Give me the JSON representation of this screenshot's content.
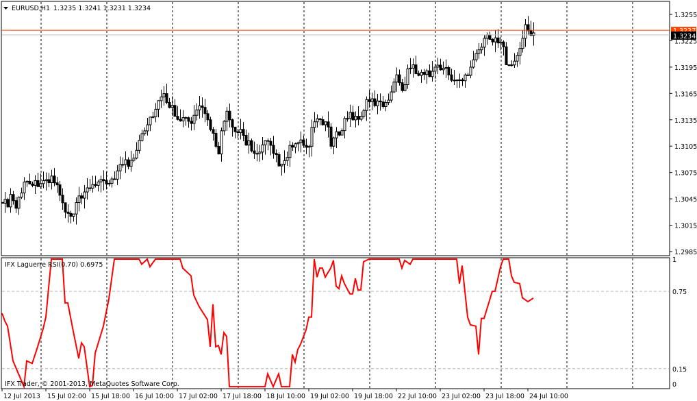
{
  "header": {
    "symbol_timeframe": "EURUSD,H1",
    "ohlc": "1.3235 1.3241 1.3231 1.3234",
    "menu_icon": "triangle-down-icon"
  },
  "indicator": {
    "label": "IFX Laguerre RSI(0.70) 0.6975",
    "copyright": "IFX Trader, © 2001-2013, MetaQuotes Software Corp.",
    "line_color": "#ff0000"
  },
  "colors": {
    "ask_line": "#ff4500",
    "bid_line": "#c0c0c0",
    "bid_label_bg": "#000000"
  },
  "chart_data": [
    {
      "type": "candlestick",
      "title": "EURUSD,H1",
      "ylim": [
        1.2975,
        1.3262
      ],
      "y_ticks": [
        "1.3255",
        "1.3225",
        "1.3195",
        "1.3165",
        "1.3135",
        "1.3105",
        "1.3075",
        "1.3045",
        "1.3015",
        "1.2985"
      ],
      "x_ticks": [
        "12 Jul 2013",
        "15 Jul 02:00",
        "15 Jul 18:00",
        "16 Jul 10:00",
        "17 Jul 02:00",
        "17 Jul 18:00",
        "18 Jul 10:00",
        "19 Jul 02:00",
        "19 Jul 18:00",
        "22 Jul 10:00",
        "23 Jul 02:00",
        "23 Jul 18:00",
        "24 Jul 10:00"
      ],
      "bar_count": 195,
      "bid": "1.3234",
      "ask": "1.3237",
      "approx_closes": [
        1.3045,
        1.3037,
        1.3052,
        1.3034,
        1.3052,
        1.3064,
        1.3067,
        1.3062,
        1.3064,
        1.3067,
        1.3061,
        1.307,
        1.3061,
        1.3045,
        1.3029,
        1.3022,
        1.3029,
        1.3045,
        1.3045,
        1.3057,
        1.3062,
        1.3064,
        1.3062,
        1.3061,
        1.3067,
        1.3072,
        1.308,
        1.3088,
        1.3084,
        1.3092,
        1.3107,
        1.3123,
        1.3127,
        1.3139,
        1.3146,
        1.3158,
        1.3162,
        1.3154,
        1.3146,
        1.3139,
        1.3137,
        1.3134,
        1.3129,
        1.3146,
        1.3148,
        1.3139,
        1.3131,
        1.3115,
        1.3099,
        1.3131,
        1.3142,
        1.3123,
        1.3119,
        1.3123,
        1.3111,
        1.3107,
        1.3096,
        1.3093,
        1.3107,
        1.3107,
        1.3098,
        1.3092,
        1.308,
        1.3088,
        1.3104,
        1.3107,
        1.3107,
        1.3109,
        1.3096,
        1.3131,
        1.3136,
        1.3134,
        1.3131,
        1.3107,
        1.3115,
        1.3123,
        1.3134,
        1.3141,
        1.3139,
        1.3134,
        1.3146,
        1.3154,
        1.3156,
        1.3154,
        1.3152,
        1.3154,
        1.3162,
        1.3182,
        1.3182,
        1.3169,
        1.3194,
        1.3194,
        1.3192,
        1.3187,
        1.3186,
        1.3189,
        1.3192,
        1.3197,
        1.3194,
        1.3187,
        1.3182,
        1.3178,
        1.3178,
        1.3186,
        1.3197,
        1.3213,
        1.3215,
        1.3224,
        1.3234,
        1.3224,
        1.3223,
        1.3221,
        1.3201,
        1.3201,
        1.3205,
        1.3213,
        1.3241,
        1.3236,
        1.3234
      ]
    },
    {
      "type": "line",
      "title": "IFX Laguerre RSI(0.70)",
      "ylim": [
        0,
        1
      ],
      "y_ticks": [
        "1",
        "0.75",
        "0.15",
        "0"
      ],
      "levels": [
        0.75,
        0.15
      ],
      "points": [
        [
          0,
          0.58
        ],
        [
          1,
          0.52
        ],
        [
          2,
          0.48
        ],
        [
          4,
          0.21
        ],
        [
          6,
          0.11
        ],
        [
          8,
          0.01
        ],
        [
          9,
          0.21
        ],
        [
          10,
          0.2
        ],
        [
          11,
          0.19
        ],
        [
          13,
          0.32
        ],
        [
          15,
          0.46
        ],
        [
          16,
          0.55
        ],
        [
          18,
          1
        ],
        [
          22,
          1
        ],
        [
          23,
          0.66
        ],
        [
          24,
          0.66
        ],
        [
          26,
          0.44
        ],
        [
          28,
          0.23
        ],
        [
          29,
          0.35
        ],
        [
          30,
          0.32
        ],
        [
          32,
          0.01
        ],
        [
          33,
          0.02
        ],
        [
          34,
          0.27
        ],
        [
          37,
          0.48
        ],
        [
          39,
          0.69
        ],
        [
          41,
          1
        ],
        [
          50,
          1
        ],
        [
          51,
          0.96
        ],
        [
          53,
          1
        ],
        [
          54,
          0.94
        ],
        [
          56,
          1
        ],
        [
          65,
          1
        ],
        [
          66,
          0.93
        ],
        [
          69,
          0.87
        ],
        [
          70,
          0.72
        ],
        [
          72,
          0.63
        ],
        [
          75,
          0.53
        ],
        [
          76,
          0.32
        ],
        [
          77,
          0.65
        ],
        [
          78,
          0.32
        ],
        [
          79,
          0.33
        ],
        [
          80,
          0.26
        ],
        [
          81,
          0.43
        ],
        [
          82,
          0.4
        ],
        [
          83,
          0.01
        ],
        [
          96,
          0.01
        ],
        [
          97,
          0.11
        ],
        [
          99,
          0.01
        ],
        [
          101,
          0.11
        ],
        [
          102,
          0.01
        ],
        [
          105,
          0.01
        ],
        [
          106,
          0.26
        ],
        [
          107,
          0.2
        ],
        [
          108,
          0.3
        ],
        [
          109,
          0.34
        ],
        [
          111,
          0.45
        ],
        [
          112,
          0.55
        ],
        [
          113,
          0.55
        ],
        [
          114,
          1
        ],
        [
          115,
          0.86
        ],
        [
          116,
          0.93
        ],
        [
          117,
          0.93
        ],
        [
          118,
          0.86
        ],
        [
          120,
          0.93
        ],
        [
          121,
          0.99
        ],
        [
          122,
          0.79
        ],
        [
          123,
          0.77
        ],
        [
          124,
          0.87
        ],
        [
          125,
          0.81
        ],
        [
          127,
          0.73
        ],
        [
          128,
          0.73
        ],
        [
          129,
          0.85
        ],
        [
          130,
          0.76
        ],
        [
          131,
          0.76
        ],
        [
          132,
          0.98
        ],
        [
          134,
          1
        ],
        [
          145,
          1
        ],
        [
          146,
          0.93
        ],
        [
          147,
          0.99
        ],
        [
          149,
          0.96
        ],
        [
          150,
          1
        ],
        [
          166,
          1
        ],
        [
          167,
          0.81
        ],
        [
          168,
          0.95
        ],
        [
          170,
          0.55
        ],
        [
          171,
          0.49
        ],
        [
          173,
          0.48
        ],
        [
          174,
          0.26
        ],
        [
          175,
          0.54
        ],
        [
          176,
          0.54
        ],
        [
          179,
          0.75
        ],
        [
          180,
          0.75
        ],
        [
          182,
          0.94
        ],
        [
          183,
          1
        ],
        [
          185,
          1
        ],
        [
          186,
          0.87
        ],
        [
          187,
          0.82
        ],
        [
          189,
          0.81
        ],
        [
          190,
          0.7
        ],
        [
          192,
          0.67
        ],
        [
          194,
          0.6975
        ]
      ]
    }
  ]
}
